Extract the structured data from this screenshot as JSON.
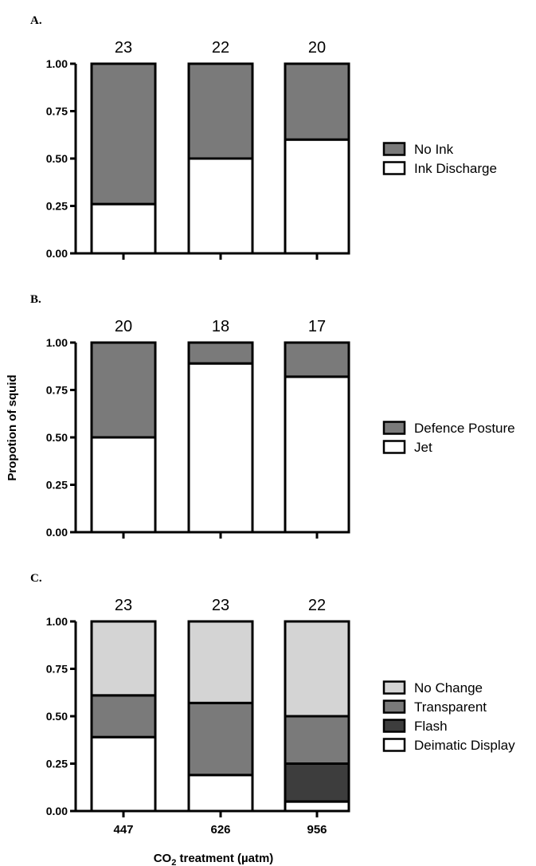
{
  "figure": {
    "ylabel": "Propotion of squid",
    "xlabel_prefix": "CO",
    "xlabel_subscript": "2",
    "xlabel_suffix": " treatment (µatm)"
  },
  "chart_data": [
    {
      "type": "bar",
      "stacked": true,
      "panel_label": "A.",
      "categories": [
        "447",
        "626",
        "956"
      ],
      "show_tick_labels": false,
      "sample_sizes": [
        "23",
        "22",
        "20"
      ],
      "ylim": [
        0,
        1
      ],
      "yticks": [
        "0.00",
        "0.25",
        "0.50",
        "0.75",
        "1.00"
      ],
      "series": [
        {
          "name": "Ink Discharge",
          "values": [
            0.26,
            0.5,
            0.6
          ],
          "color": "#ffffff"
        },
        {
          "name": "No Ink",
          "values": [
            0.74,
            0.5,
            0.4
          ],
          "color": "#7a7a7a"
        }
      ],
      "legend_order": [
        "No Ink",
        "Ink Discharge"
      ],
      "legend_position": "right"
    },
    {
      "type": "bar",
      "stacked": true,
      "panel_label": "B.",
      "categories": [
        "447",
        "626",
        "956"
      ],
      "show_tick_labels": false,
      "sample_sizes": [
        "20",
        "18",
        "17"
      ],
      "ylim": [
        0,
        1
      ],
      "yticks": [
        "0.00",
        "0.25",
        "0.50",
        "0.75",
        "1.00"
      ],
      "series": [
        {
          "name": "Jet",
          "values": [
            0.5,
            0.89,
            0.82
          ],
          "color": "#ffffff"
        },
        {
          "name": "Defence Posture",
          "values": [
            0.5,
            0.11,
            0.18
          ],
          "color": "#7a7a7a"
        }
      ],
      "legend_order": [
        "Defence Posture",
        "Jet"
      ],
      "legend_position": "right"
    },
    {
      "type": "bar",
      "stacked": true,
      "panel_label": "C.",
      "categories": [
        "447",
        "626",
        "956"
      ],
      "show_tick_labels": true,
      "sample_sizes": [
        "23",
        "23",
        "22"
      ],
      "ylim": [
        0,
        1
      ],
      "yticks": [
        "0.00",
        "0.25",
        "0.50",
        "0.75",
        "1.00"
      ],
      "series": [
        {
          "name": "Deimatic Display",
          "values": [
            0.39,
            0.19,
            0.05
          ],
          "color": "#ffffff"
        },
        {
          "name": "Flash",
          "values": [
            0.0,
            0.0,
            0.2
          ],
          "color": "#3d3d3d"
        },
        {
          "name": "Transparent",
          "values": [
            0.22,
            0.38,
            0.25
          ],
          "color": "#7a7a7a"
        },
        {
          "name": "No Change",
          "values": [
            0.39,
            0.43,
            0.5
          ],
          "color": "#d4d4d4"
        }
      ],
      "legend_order": [
        "No Change",
        "Transparent",
        "Flash",
        "Deimatic Display"
      ],
      "legend_position": "right"
    }
  ]
}
